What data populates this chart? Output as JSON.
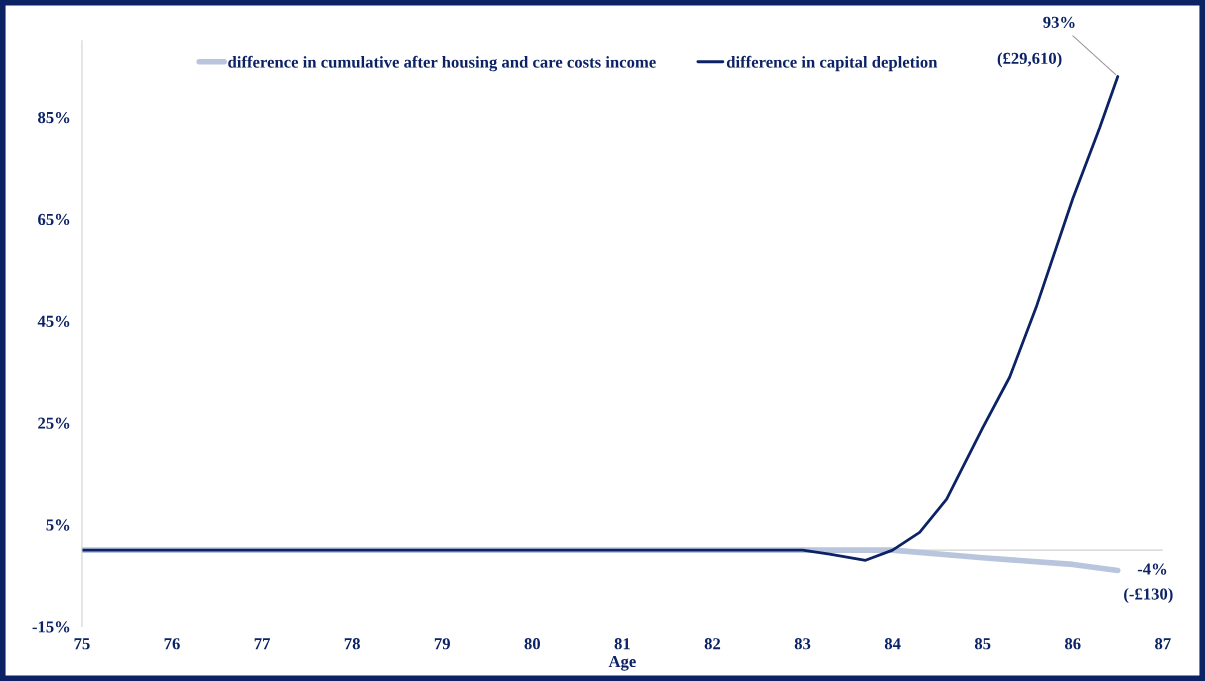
{
  "chart_data": {
    "type": "line",
    "xlabel": "Age",
    "series": [
      {
        "name": "difference in cumulative after housing and care costs income",
        "color": "#b9c5dc",
        "x": [
          75,
          76,
          77,
          78,
          79,
          80,
          81,
          82,
          83,
          84,
          85,
          86,
          86.5
        ],
        "values": [
          0,
          0,
          0,
          0,
          0,
          0,
          0,
          0,
          0,
          0,
          -1.5,
          -2.8,
          -4
        ]
      },
      {
        "name": "difference in capital depletion",
        "color": "#0b2265",
        "x": [
          75,
          76,
          77,
          78,
          79,
          80,
          81,
          82,
          83,
          83.3,
          83.7,
          84,
          84.3,
          84.6,
          85,
          85.3,
          85.6,
          86,
          86.3,
          86.5
        ],
        "values": [
          0,
          0,
          0,
          0,
          0,
          0,
          0,
          0,
          0,
          -0.8,
          -2,
          0,
          3.5,
          10,
          24,
          34,
          48,
          69,
          83,
          93
        ]
      }
    ],
    "xlim": [
      75,
      87
    ],
    "xticks": [
      75,
      76,
      77,
      78,
      79,
      80,
      81,
      82,
      83,
      84,
      85,
      86,
      87
    ],
    "ylim": [
      -15,
      100
    ],
    "yticks": [
      {
        "value": -15,
        "label": "-15%"
      },
      {
        "value": 5,
        "label": "5%"
      },
      {
        "value": 25,
        "label": "25%"
      },
      {
        "value": 45,
        "label": "45%"
      },
      {
        "value": 65,
        "label": "65%"
      },
      {
        "value": 85,
        "label": "85%"
      }
    ],
    "ref_lines": [
      {
        "axis": "y",
        "value": 0,
        "color": "#d0d0d0"
      }
    ],
    "annotations": [
      {
        "text": "93%",
        "x": 86.5,
        "y": 93
      },
      "(£29,610)",
      {
        "text": "-4%",
        "x": 86.5,
        "y": -4
      },
      "(-£130)"
    ],
    "legend": "top",
    "grid": false,
    "marker": "none",
    "line_style": "solid"
  }
}
